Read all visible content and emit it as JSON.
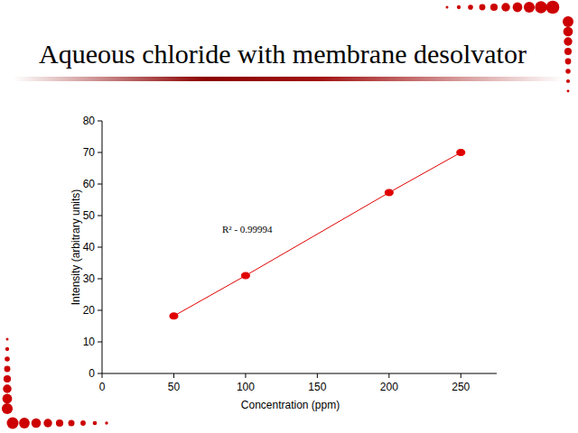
{
  "chart_data": {
    "type": "line",
    "title": "Aqueous chloride with membrane desolvator",
    "x_label": "Concentration (ppm)",
    "y_label": "Intensity (arbitrary units)",
    "annotations": [
      "R² - 0.99994"
    ],
    "x": [
      50,
      100,
      200,
      250
    ],
    "series": [
      {
        "color": "#e00000",
        "marker": "circle",
        "line_style": "solid",
        "values": [
          18.2,
          31,
          57.3,
          70
        ]
      }
    ],
    "xlim": [
      0,
      275
    ],
    "ylim": [
      0,
      80
    ],
    "xticks": [
      0,
      50,
      100,
      150,
      200,
      250
    ],
    "yticks": [
      0,
      10,
      20,
      30,
      40,
      50,
      60,
      70,
      80
    ],
    "grid": false
  }
}
